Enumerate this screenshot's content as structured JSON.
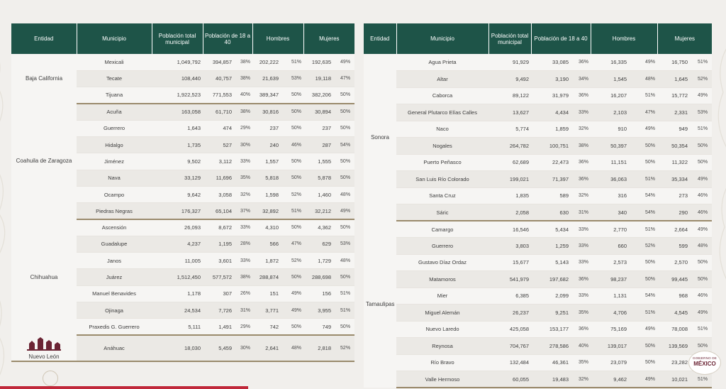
{
  "left_table": {
    "headers": [
      "Entidad",
      "Municipio",
      "Población total municipal",
      "Población de 18 a 40",
      "Hombres",
      "Mujeres"
    ],
    "groups": [
      {
        "entity": "Baja California",
        "rows": [
          {
            "municipio": "Mexicali",
            "total": "1,049,792",
            "pob": "394,857",
            "pob_pct": "38%",
            "h": "202,222",
            "h_pct": "51%",
            "m": "192,635",
            "m_pct": "49%"
          },
          {
            "municipio": "Tecate",
            "total": "108,440",
            "pob": "40,757",
            "pob_pct": "38%",
            "h": "21,639",
            "h_pct": "53%",
            "m": "19,118",
            "m_pct": "47%"
          },
          {
            "municipio": "Tijuana",
            "total": "1,922,523",
            "pob": "771,553",
            "pob_pct": "40%",
            "h": "389,347",
            "h_pct": "50%",
            "m": "382,206",
            "m_pct": "50%"
          }
        ]
      },
      {
        "entity": "Coahuila de Zaragoza",
        "rows": [
          {
            "municipio": "Acuña",
            "total": "163,058",
            "pob": "61,710",
            "pob_pct": "38%",
            "h": "30,816",
            "h_pct": "50%",
            "m": "30,894",
            "m_pct": "50%"
          },
          {
            "municipio": "Guerrero",
            "total": "1,643",
            "pob": "474",
            "pob_pct": "29%",
            "h": "237",
            "h_pct": "50%",
            "m": "237",
            "m_pct": "50%"
          },
          {
            "municipio": "Hidalgo",
            "total": "1,735",
            "pob": "527",
            "pob_pct": "30%",
            "h": "240",
            "h_pct": "46%",
            "m": "287",
            "m_pct": "54%"
          },
          {
            "municipio": "Jiménez",
            "total": "9,502",
            "pob": "3,112",
            "pob_pct": "33%",
            "h": "1,557",
            "h_pct": "50%",
            "m": "1,555",
            "m_pct": "50%"
          },
          {
            "municipio": "Nava",
            "total": "33,129",
            "pob": "11,696",
            "pob_pct": "35%",
            "h": "5,818",
            "h_pct": "50%",
            "m": "5,878",
            "m_pct": "50%"
          },
          {
            "municipio": "Ocampo",
            "total": "9,642",
            "pob": "3,058",
            "pob_pct": "32%",
            "h": "1,598",
            "h_pct": "52%",
            "m": "1,460",
            "m_pct": "48%"
          },
          {
            "municipio": "Piedras Negras",
            "total": "176,327",
            "pob": "65,104",
            "pob_pct": "37%",
            "h": "32,892",
            "h_pct": "51%",
            "m": "32,212",
            "m_pct": "49%"
          }
        ]
      },
      {
        "entity": "Chihuahua",
        "rows": [
          {
            "municipio": "Ascensión",
            "total": "26,093",
            "pob": "8,672",
            "pob_pct": "33%",
            "h": "4,310",
            "h_pct": "50%",
            "m": "4,362",
            "m_pct": "50%"
          },
          {
            "municipio": "Guadalupe",
            "total": "4,237",
            "pob": "1,195",
            "pob_pct": "28%",
            "h": "566",
            "h_pct": "47%",
            "m": "629",
            "m_pct": "53%"
          },
          {
            "municipio": "Janos",
            "total": "11,005",
            "pob": "3,601",
            "pob_pct": "33%",
            "h": "1,872",
            "h_pct": "52%",
            "m": "1,729",
            "m_pct": "48%"
          },
          {
            "municipio": "Juárez",
            "total": "1,512,450",
            "pob": "577,572",
            "pob_pct": "38%",
            "h": "288,874",
            "h_pct": "50%",
            "m": "288,698",
            "m_pct": "50%"
          },
          {
            "municipio": "Manuel Benavides",
            "total": "1,178",
            "pob": "307",
            "pob_pct": "26%",
            "h": "151",
            "h_pct": "49%",
            "m": "156",
            "m_pct": "51%"
          },
          {
            "municipio": "Ojinaga",
            "total": "24,534",
            "pob": "7,726",
            "pob_pct": "31%",
            "h": "3,771",
            "h_pct": "49%",
            "m": "3,955",
            "m_pct": "51%"
          },
          {
            "municipio": "Praxedis G. Guerrero",
            "total": "5,111",
            "pob": "1,491",
            "pob_pct": "29%",
            "h": "742",
            "h_pct": "50%",
            "m": "749",
            "m_pct": "50%"
          }
        ]
      },
      {
        "entity": "Nuevo León",
        "logo": true,
        "rows": [
          {
            "municipio": "Anáhuac",
            "total": "18,030",
            "pob": "5,459",
            "pob_pct": "30%",
            "h": "2,641",
            "h_pct": "48%",
            "m": "2,818",
            "m_pct": "52%"
          }
        ]
      }
    ]
  },
  "right_table": {
    "headers": [
      "Entidad",
      "Municipio",
      "Población total municipal",
      "Población de 18 a 40",
      "Hombres",
      "Mujeres"
    ],
    "groups": [
      {
        "entity": "Sonora",
        "rows": [
          {
            "municipio": "Agua Prieta",
            "total": "91,929",
            "pob": "33,085",
            "pob_pct": "36%",
            "h": "16,335",
            "h_pct": "49%",
            "m": "16,750",
            "m_pct": "51%"
          },
          {
            "municipio": "Altar",
            "total": "9,492",
            "pob": "3,190",
            "pob_pct": "34%",
            "h": "1,545",
            "h_pct": "48%",
            "m": "1,645",
            "m_pct": "52%"
          },
          {
            "municipio": "Caborca",
            "total": "89,122",
            "pob": "31,979",
            "pob_pct": "36%",
            "h": "16,207",
            "h_pct": "51%",
            "m": "15,772",
            "m_pct": "49%"
          },
          {
            "municipio": "General Plutarco Elías Calles",
            "total": "13,627",
            "pob": "4,434",
            "pob_pct": "33%",
            "h": "2,103",
            "h_pct": "47%",
            "m": "2,331",
            "m_pct": "53%"
          },
          {
            "municipio": "Naco",
            "total": "5,774",
            "pob": "1,859",
            "pob_pct": "32%",
            "h": "910",
            "h_pct": "49%",
            "m": "949",
            "m_pct": "51%"
          },
          {
            "municipio": "Nogales",
            "total": "264,782",
            "pob": "100,751",
            "pob_pct": "38%",
            "h": "50,397",
            "h_pct": "50%",
            "m": "50,354",
            "m_pct": "50%"
          },
          {
            "municipio": "Puerto Peñasco",
            "total": "62,689",
            "pob": "22,473",
            "pob_pct": "36%",
            "h": "11,151",
            "h_pct": "50%",
            "m": "11,322",
            "m_pct": "50%"
          },
          {
            "municipio": "San Luis Río Colorado",
            "total": "199,021",
            "pob": "71,397",
            "pob_pct": "36%",
            "h": "36,063",
            "h_pct": "51%",
            "m": "35,334",
            "m_pct": "49%"
          },
          {
            "municipio": "Santa Cruz",
            "total": "1,835",
            "pob": "589",
            "pob_pct": "32%",
            "h": "316",
            "h_pct": "54%",
            "m": "273",
            "m_pct": "46%"
          },
          {
            "municipio": "Sáric",
            "total": "2,058",
            "pob": "630",
            "pob_pct": "31%",
            "h": "340",
            "h_pct": "54%",
            "m": "290",
            "m_pct": "46%"
          }
        ]
      },
      {
        "entity": "Tamaulipas",
        "rows": [
          {
            "municipio": "Camargo",
            "total": "16,546",
            "pob": "5,434",
            "pob_pct": "33%",
            "h": "2,770",
            "h_pct": "51%",
            "m": "2,664",
            "m_pct": "49%"
          },
          {
            "municipio": "Guerrero",
            "total": "3,803",
            "pob": "1,259",
            "pob_pct": "33%",
            "h": "660",
            "h_pct": "52%",
            "m": "599",
            "m_pct": "48%"
          },
          {
            "municipio": "Gustavo Díaz Ordaz",
            "total": "15,677",
            "pob": "5,143",
            "pob_pct": "33%",
            "h": "2,573",
            "h_pct": "50%",
            "m": "2,570",
            "m_pct": "50%"
          },
          {
            "municipio": "Matamoros",
            "total": "541,979",
            "pob": "197,682",
            "pob_pct": "36%",
            "h": "98,237",
            "h_pct": "50%",
            "m": "99,445",
            "m_pct": "50%"
          },
          {
            "municipio": "Mier",
            "total": "6,385",
            "pob": "2,099",
            "pob_pct": "33%",
            "h": "1,131",
            "h_pct": "54%",
            "m": "968",
            "m_pct": "46%"
          },
          {
            "municipio": "Miguel Alemán",
            "total": "26,237",
            "pob": "9,251",
            "pob_pct": "35%",
            "h": "4,706",
            "h_pct": "51%",
            "m": "4,545",
            "m_pct": "49%"
          },
          {
            "municipio": "Nuevo Laredo",
            "total": "425,058",
            "pob": "153,177",
            "pob_pct": "36%",
            "h": "75,169",
            "h_pct": "49%",
            "m": "78,008",
            "m_pct": "51%"
          },
          {
            "municipio": "Reynosa",
            "total": "704,767",
            "pob": "278,586",
            "pob_pct": "40%",
            "h": "139,017",
            "h_pct": "50%",
            "m": "139,569",
            "m_pct": "50%"
          },
          {
            "municipio": "Río Bravo",
            "total": "132,484",
            "pob": "46,361",
            "pob_pct": "35%",
            "h": "23,079",
            "h_pct": "50%",
            "m": "23,282",
            "m_pct": "50%"
          },
          {
            "municipio": "Valle Hermoso",
            "total": "60,055",
            "pob": "19,483",
            "pob_pct": "32%",
            "h": "9,462",
            "h_pct": "49%",
            "m": "10,021",
            "m_pct": "51%"
          }
        ]
      }
    ]
  },
  "logo": {
    "line1": "GOBIERNO DE",
    "line2": "MÉXICO"
  },
  "colors": {
    "header_bg": "#1e5448",
    "group_divider": "#9a8a6c",
    "accent_red": "#c0283a",
    "brand_guinda": "#6b2434"
  }
}
